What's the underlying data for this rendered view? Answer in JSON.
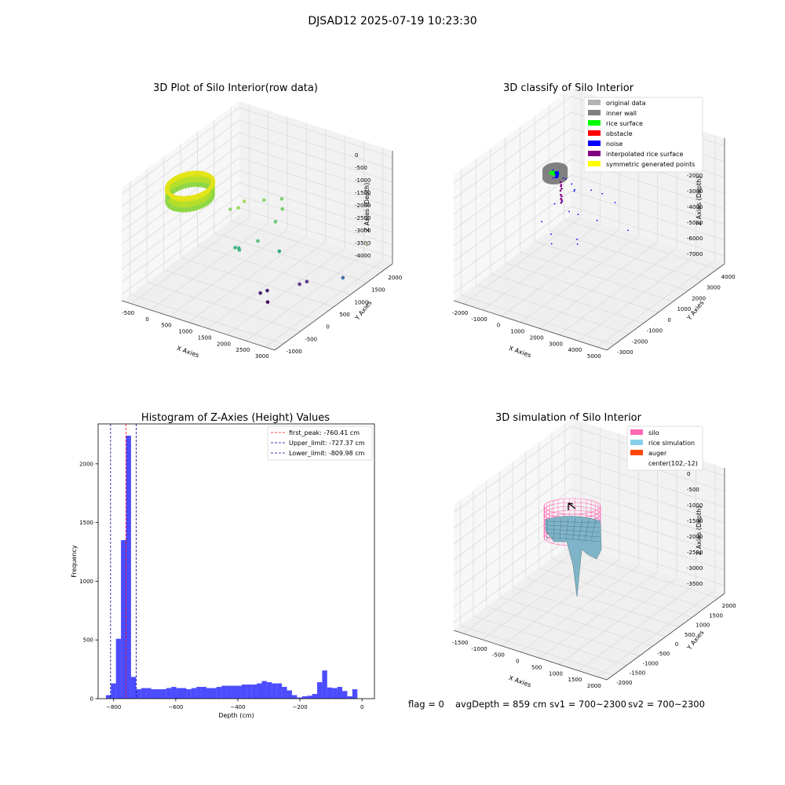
{
  "figure": {
    "suptitle": "DJSAD12 2025-07-19 10:23:30",
    "footer": {
      "flag": "flag = 0",
      "avgdepth": "avgDepth = 859 cm",
      "sv1": "sv1 = 700~2300",
      "sv2": "sv2 = 700~2300"
    }
  },
  "chart_data": [
    {
      "type": "scatter3d",
      "title": "3D Plot of Silo Interior(row data)",
      "xlabel": "X Axies",
      "ylabel": "Y Axies",
      "zlabel": "Z Axies (Depth)",
      "x_ticks": [
        "-500",
        "0",
        "500",
        "1000",
        "1500",
        "2000",
        "2500",
        "3000"
      ],
      "y_ticks": [
        "-1000",
        "-500",
        "0",
        "500",
        "1000",
        "1500",
        "2000"
      ],
      "z_ticks": [
        "0",
        "-500",
        "-1000",
        "-1500",
        "-2000",
        "-2500",
        "-3000",
        "-3500",
        "-4000"
      ],
      "xlim": [
        -700,
        3300
      ],
      "ylim": [
        -1100,
        2300
      ],
      "zlim": [
        -4200,
        200
      ],
      "colormap": "viridis",
      "grid": true,
      "ring": {
        "center": [
          102,
          -12
        ],
        "radius": 450,
        "z_top": -400,
        "z_bottom": -900
      },
      "points": [
        {
          "x": 600,
          "y": 600,
          "z": -1700,
          "c": "#8fd36a"
        },
        {
          "x": 900,
          "y": 500,
          "z": -1400,
          "c": "#9fda60"
        },
        {
          "x": 1100,
          "y": 450,
          "z": -1000,
          "c": "#a8db5c"
        },
        {
          "x": 1300,
          "y": 800,
          "z": -1200,
          "c": "#8fd36a"
        },
        {
          "x": 1400,
          "y": 1200,
          "z": -1500,
          "c": "#7ecf70"
        },
        {
          "x": 1600,
          "y": 1000,
          "z": -1600,
          "c": "#7ecf70"
        },
        {
          "x": 1600,
          "y": 800,
          "z": -1900,
          "c": "#6ccb76"
        },
        {
          "x": 1500,
          "y": 400,
          "z": -2300,
          "c": "#5ec27c"
        },
        {
          "x": 1200,
          "y": 200,
          "z": -2600,
          "c": "#48b581"
        },
        {
          "x": 1000,
          "y": 300,
          "z": -2700,
          "c": "#3fb283"
        },
        {
          "x": 1050,
          "y": 350,
          "z": -2750,
          "c": "#3fb283"
        },
        {
          "x": 1700,
          "y": 800,
          "z": -3000,
          "c": "#2fa587"
        },
        {
          "x": 3000,
          "y": 1900,
          "z": -3200,
          "c": "#a7b39a"
        },
        {
          "x": 3000,
          "y": 1200,
          "z": -3800,
          "c": "#3b6fa5"
        },
        {
          "x": 2500,
          "y": 500,
          "z": -3600,
          "c": "#5b3d8c"
        },
        {
          "x": 2600,
          "y": 600,
          "z": -3550,
          "c": "#5b3d8c"
        },
        {
          "x": 2200,
          "y": -300,
          "z": -3300,
          "c": "#472071"
        },
        {
          "x": 2200,
          "y": -100,
          "z": -3400,
          "c": "#472071"
        },
        {
          "x": 2300,
          "y": -200,
          "z": -3700,
          "c": "#440f5d"
        }
      ]
    },
    {
      "type": "scatter3d",
      "title": "3D classify of Silo Interior",
      "xlabel": "X Axies",
      "ylabel": "Y Axies",
      "zlabel": "Z Axies (Depth)",
      "x_ticks": [
        "-2000",
        "-1000",
        "0",
        "1000",
        "2000",
        "3000",
        "4000",
        "5000"
      ],
      "y_ticks": [
        "-3000",
        "-2000",
        "-1000",
        "0",
        "1000",
        "2000",
        "3000",
        "4000"
      ],
      "z_ticks": [
        "0",
        "-1000",
        "-2000",
        "-3000",
        "-4000",
        "-5000",
        "-6000",
        "-7000"
      ],
      "xlim": [
        -2500,
        5200
      ],
      "ylim": [
        -3300,
        4500
      ],
      "zlim": [
        -7500,
        500
      ],
      "grid": true,
      "legend": [
        {
          "label": "original data",
          "color": "#b3b3b3"
        },
        {
          "label": "inner wall",
          "color": "#808080"
        },
        {
          "label": "rice surface",
          "color": "#00ff00"
        },
        {
          "label": "obstacle",
          "color": "#ff0000"
        },
        {
          "label": "noise",
          "color": "#0000ff"
        },
        {
          "label": "interpolated rice surface",
          "color": "#800080"
        },
        {
          "label": "symmetric generated points",
          "color": "#ffff00"
        }
      ],
      "ring": {
        "center": [
          102,
          -12
        ],
        "radius": 450,
        "z_top": -400,
        "z_bottom": -900
      },
      "noise_points": [
        {
          "x": 200,
          "y": 400,
          "z": -1200
        },
        {
          "x": 400,
          "y": 300,
          "z": -1100
        },
        {
          "x": 700,
          "y": 300,
          "z": -1300
        },
        {
          "x": 900,
          "y": 200,
          "z": -1600
        },
        {
          "x": 1000,
          "y": 100,
          "z": -1400
        },
        {
          "x": 600,
          "y": -200,
          "z": -2100
        },
        {
          "x": 300,
          "y": -300,
          "z": -2300
        },
        {
          "x": 800,
          "y": 0,
          "z": -2800
        },
        {
          "x": 1100,
          "y": 200,
          "z": -3000
        },
        {
          "x": 500,
          "y": -800,
          "z": -3800
        },
        {
          "x": 600,
          "y": -900,
          "z": -4300
        },
        {
          "x": 1500,
          "y": -400,
          "z": -4000
        },
        {
          "x": 1600,
          "y": -500,
          "z": -4200
        },
        {
          "x": 1900,
          "y": 400,
          "z": -3200
        },
        {
          "x": 3000,
          "y": 1000,
          "z": -3800
        },
        {
          "x": 2200,
          "y": 1200,
          "z": -2500
        },
        {
          "x": 1700,
          "y": 1000,
          "z": -2000
        },
        {
          "x": 1300,
          "y": 800,
          "z": -1800
        },
        {
          "x": -200,
          "y": -500,
          "z": -3500
        },
        {
          "x": 0,
          "y": 0,
          "z": -1000
        },
        {
          "x": 100,
          "y": 200,
          "z": -700
        },
        {
          "x": -100,
          "y": 100,
          "z": -600
        },
        {
          "x": 200,
          "y": -100,
          "z": -800
        }
      ],
      "interpolated_points": [
        {
          "x": 300,
          "y": 100,
          "z": -1200
        },
        {
          "x": 350,
          "y": 50,
          "z": -1400
        },
        {
          "x": 400,
          "y": -50,
          "z": -1600
        },
        {
          "x": 450,
          "y": -100,
          "z": -1800
        },
        {
          "x": 500,
          "y": -150,
          "z": -2000
        },
        {
          "x": 550,
          "y": -200,
          "z": -2200
        },
        {
          "x": 420,
          "y": 0,
          "z": -1500
        },
        {
          "x": 480,
          "y": -80,
          "z": -1900
        },
        {
          "x": 520,
          "y": -120,
          "z": -2100
        },
        {
          "x": 380,
          "y": 30,
          "z": -1300
        }
      ]
    },
    {
      "type": "bar",
      "title": "Histogram of Z-Axies (Height) Values",
      "xlabel": "Depth (cm)",
      "ylabel": "Frequency",
      "xlim": [
        -850,
        40
      ],
      "ylim": [
        0,
        2340
      ],
      "x_ticks": [
        "-800",
        "-600",
        "-400",
        "-200",
        "0"
      ],
      "y_ticks": [
        "0",
        "500",
        "1000",
        "1500",
        "2000"
      ],
      "bar_color": "#0000ff",
      "bin_edges_start": -825,
      "bin_width": 16.2,
      "values": [
        30,
        130,
        510,
        1350,
        2240,
        185,
        80,
        90,
        90,
        80,
        80,
        80,
        90,
        100,
        90,
        90,
        80,
        90,
        100,
        100,
        90,
        90,
        100,
        110,
        110,
        110,
        110,
        120,
        120,
        120,
        130,
        150,
        140,
        130,
        130,
        100,
        70,
        30,
        10,
        20,
        25,
        40,
        140,
        240,
        95,
        90,
        100,
        65,
        20,
        80
      ],
      "legend_placement": "top-right",
      "vlines": [
        {
          "x": -760.41,
          "color": "#ff0000",
          "label": "first_peak: -760.41 cm"
        },
        {
          "x": -727.37,
          "color": "#00008b",
          "label": "Upper_limit: -727.37 cm"
        },
        {
          "x": -809.98,
          "color": "#00008b",
          "label": "Lower_limit: -809.98 cm"
        }
      ]
    },
    {
      "type": "surface3d",
      "title": "3D simulation of Silo Interior",
      "xlabel": "X Axies",
      "ylabel": "Y Axies",
      "zlabel": "Z Axies (Depth)",
      "x_ticks": [
        "-1500",
        "-1000",
        "-500",
        "0",
        "500",
        "1000",
        "1500",
        "2000"
      ],
      "y_ticks": [
        "-2000",
        "-1500",
        "-1000",
        "-500",
        "0",
        "500",
        "1000",
        "1500",
        "2000"
      ],
      "z_ticks": [
        "0",
        "-500",
        "-1000",
        "-1500",
        "-2000",
        "-2500",
        "-3000",
        "-3500"
      ],
      "xlim": [
        -1800,
        2100
      ],
      "ylim": [
        -2100,
        2100
      ],
      "zlim": [
        -3900,
        300
      ],
      "grid": true,
      "legend": [
        {
          "label": "silo",
          "color": "#ff69b4"
        },
        {
          "label": "rice simulation",
          "color": "#87ceeb"
        },
        {
          "label": "auger",
          "color": "#ff4500"
        },
        {
          "label": "center(102,-12)",
          "color": ""
        }
      ]
    }
  ]
}
